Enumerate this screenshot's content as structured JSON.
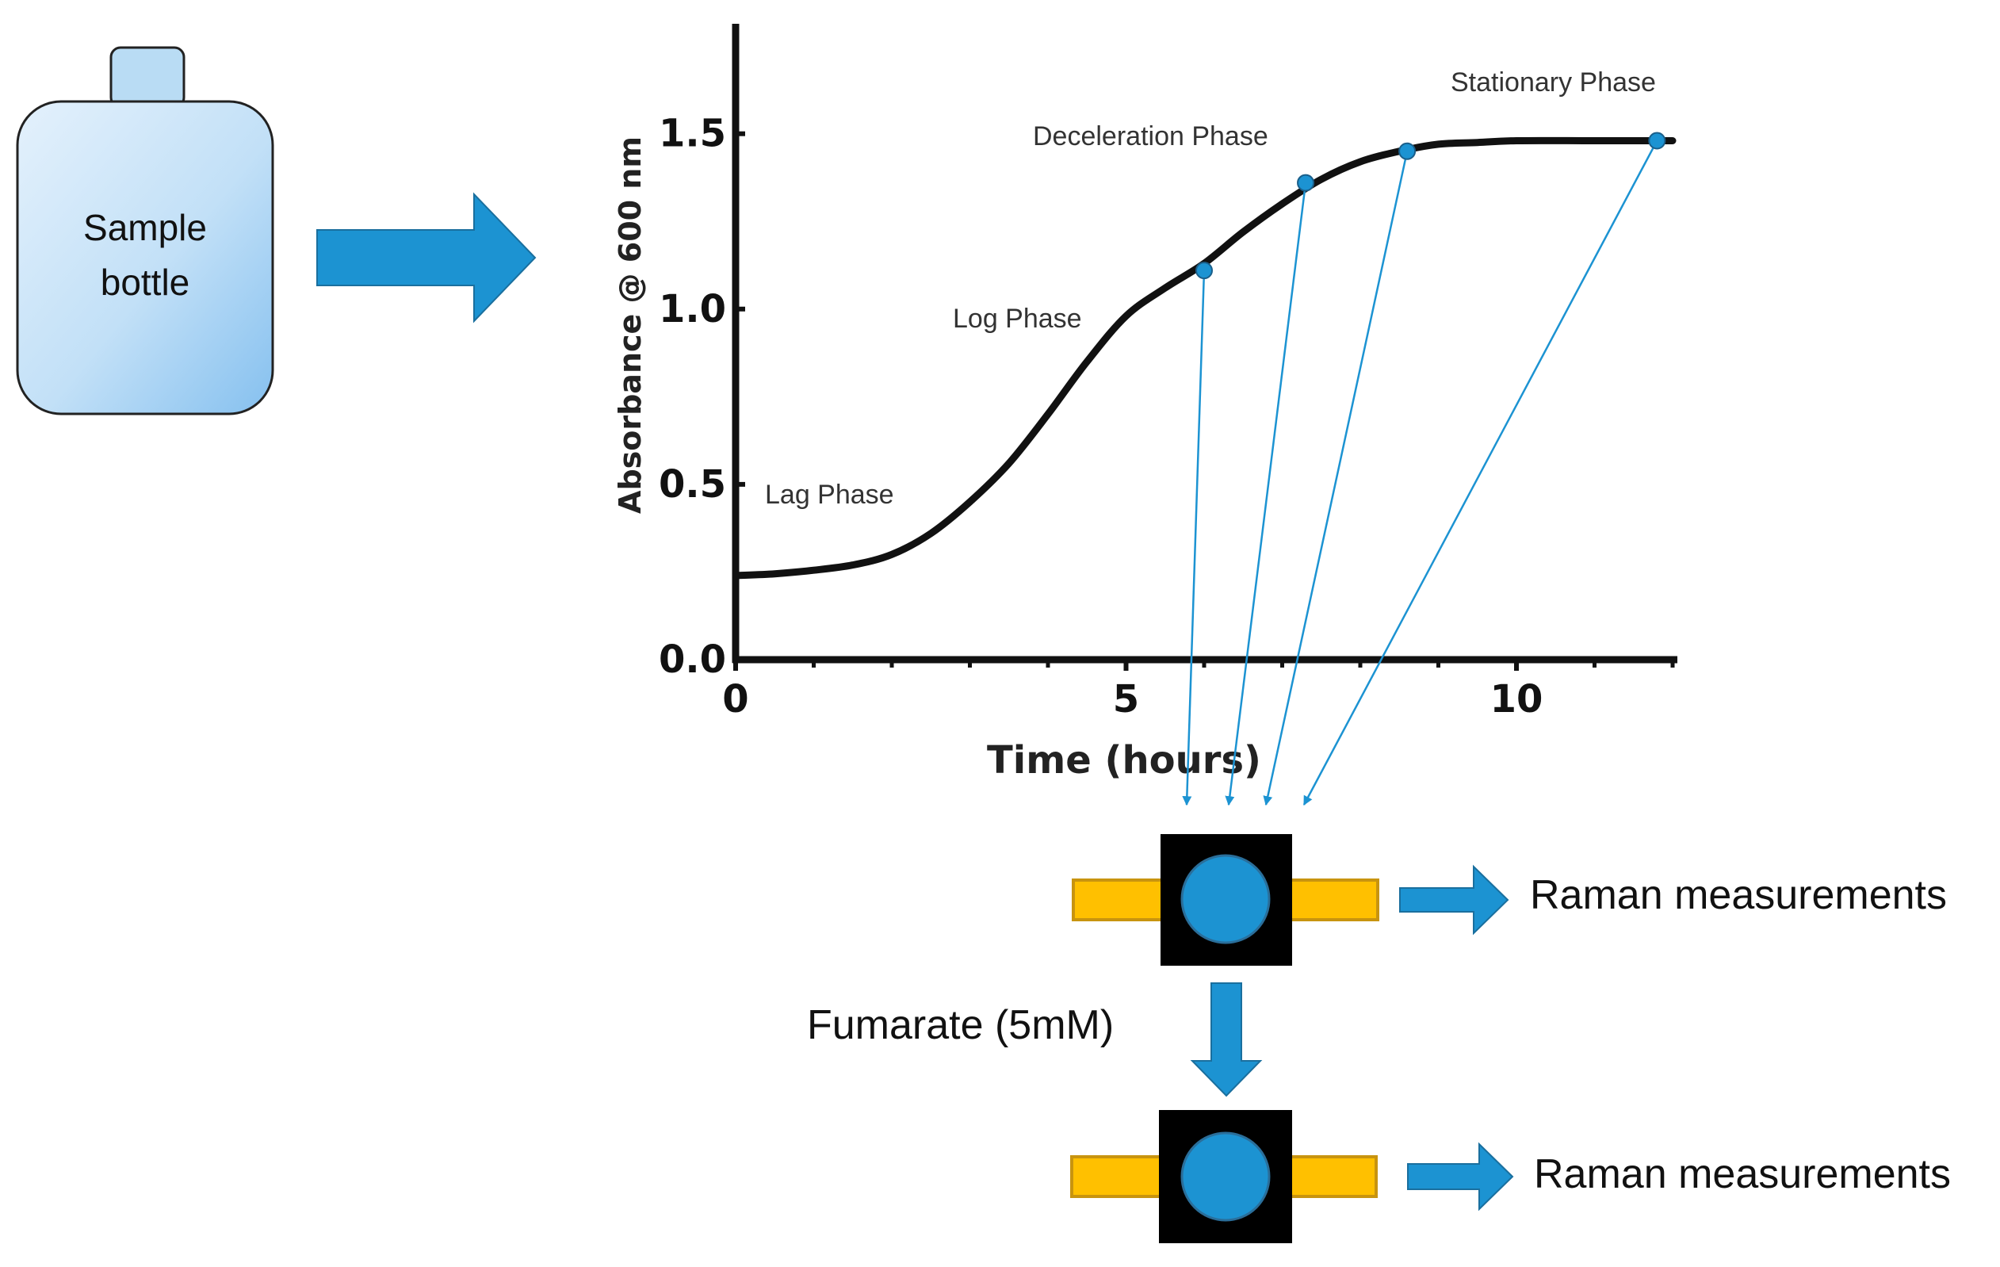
{
  "sample_bottle": {
    "label_line1": "Sample",
    "label_line2": "bottle"
  },
  "chart_data": {
    "type": "line",
    "title": "",
    "xlabel": "Time (hours)",
    "ylabel": "Absorbance @ 600 nm",
    "xlim": [
      0,
      12
    ],
    "ylim": [
      0,
      1.8
    ],
    "x_ticks": [
      "0",
      "5",
      "10"
    ],
    "y_ticks": [
      "0.0",
      "0.5",
      "1.0",
      "1.5"
    ],
    "series": [
      {
        "name": "growth curve",
        "x": [
          0,
          0.5,
          1,
          1.5,
          2,
          2.5,
          3,
          3.5,
          4,
          4.5,
          5,
          5.5,
          6,
          6.5,
          7,
          7.5,
          8,
          8.5,
          9,
          9.5,
          10,
          11,
          12
        ],
        "y": [
          0.24,
          0.245,
          0.255,
          0.27,
          0.3,
          0.36,
          0.45,
          0.56,
          0.7,
          0.85,
          0.98,
          1.06,
          1.13,
          1.22,
          1.3,
          1.37,
          1.42,
          1.45,
          1.47,
          1.475,
          1.48,
          1.48,
          1.48
        ]
      }
    ],
    "sample_points": [
      {
        "x": 6.0,
        "y": 1.11
      },
      {
        "x": 7.3,
        "y": 1.36
      },
      {
        "x": 8.6,
        "y": 1.45
      },
      {
        "x": 11.8,
        "y": 1.48
      }
    ],
    "phase_labels": [
      "Lag Phase",
      "Log Phase",
      "Deceleration Phase",
      "Stationary Phase"
    ],
    "grid": false
  },
  "colors": {
    "blue": "#1c93d2",
    "orange": "#ffc000",
    "bottle_light": "#dcedfb",
    "bottle_dark": "#8cc3f0"
  },
  "measurement_top": {
    "label": "Raman measurements"
  },
  "treatment": {
    "label": "Fumarate (5mM)"
  },
  "measurement_bottom": {
    "label": "Raman measurements"
  }
}
